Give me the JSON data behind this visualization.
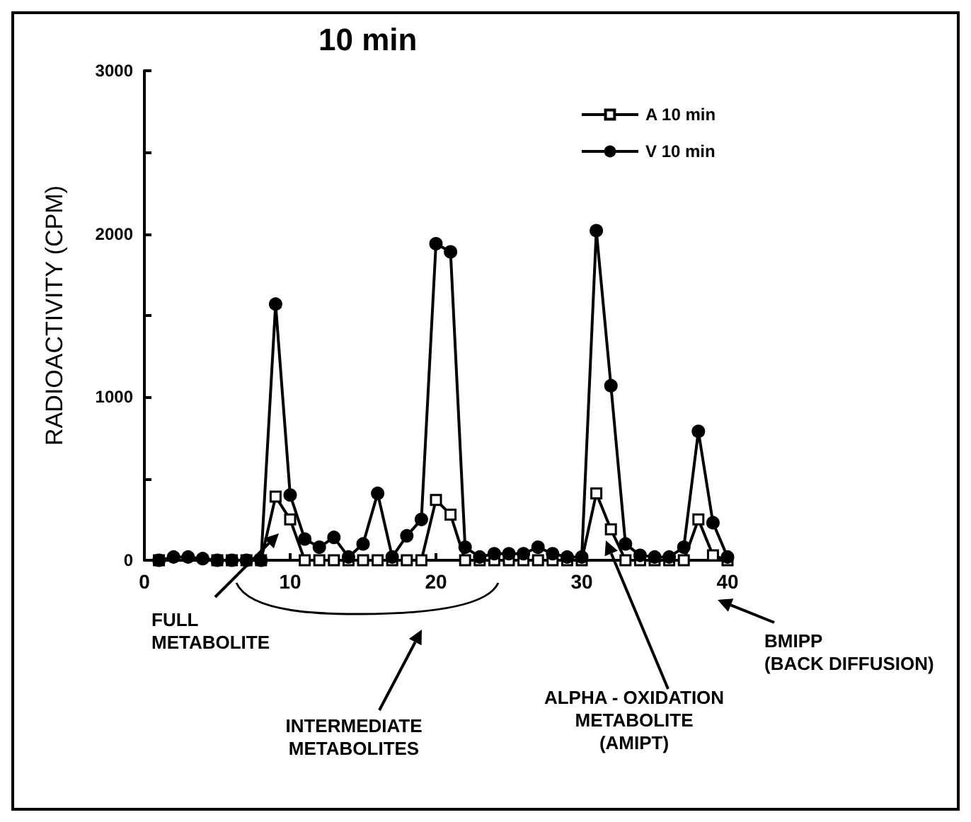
{
  "chart_data": {
    "type": "line",
    "title": "10 min",
    "ylabel": "RADIOACTIVITY (CPM)",
    "x": [
      1,
      2,
      3,
      4,
      5,
      6,
      7,
      8,
      9,
      10,
      11,
      12,
      13,
      14,
      15,
      16,
      17,
      18,
      19,
      20,
      21,
      22,
      23,
      24,
      25,
      26,
      27,
      28,
      29,
      30,
      31,
      32,
      33,
      34,
      35,
      36,
      37,
      38,
      39,
      40
    ],
    "series": [
      {
        "name": "A 10 min",
        "color": "#000000",
        "marker": "square",
        "values": [
          0,
          null,
          null,
          null,
          0,
          0,
          0,
          0,
          390,
          250,
          0,
          0,
          0,
          0,
          0,
          0,
          0,
          0,
          0,
          370,
          280,
          0,
          0,
          0,
          0,
          0,
          0,
          0,
          0,
          0,
          410,
          190,
          0,
          0,
          0,
          0,
          0,
          250,
          30,
          0
        ]
      },
      {
        "name": "V 10 min",
        "color": "#000000",
        "marker": "circle",
        "values": [
          0,
          20,
          20,
          10,
          0,
          0,
          0,
          0,
          1570,
          400,
          130,
          80,
          140,
          20,
          100,
          410,
          20,
          150,
          250,
          1940,
          1890,
          80,
          20,
          40,
          40,
          40,
          80,
          40,
          20,
          20,
          2020,
          1070,
          100,
          30,
          20,
          20,
          80,
          790,
          230,
          20
        ]
      }
    ],
    "xlim": [
      0,
      40
    ],
    "xticks": [
      0,
      10,
      20,
      30,
      40
    ],
    "ylim": [
      0,
      3000
    ],
    "yticks": [
      0,
      {
        "value": 500,
        "label": null
      },
      1000,
      {
        "value": 1500,
        "label": null
      },
      2000,
      {
        "value": 2500,
        "label": null
      },
      3000
    ],
    "grid": false,
    "legend": "top right",
    "line_style": "solid",
    "annotations": [
      "FULL\nMETABOLITE",
      "INTERMEDIATE\nMETABOLITES",
      "ALPHA - OXIDATION\nMETABOLITE\n(AMIPT)",
      "BMIPP\n(BACK DIFFUSION)"
    ]
  }
}
